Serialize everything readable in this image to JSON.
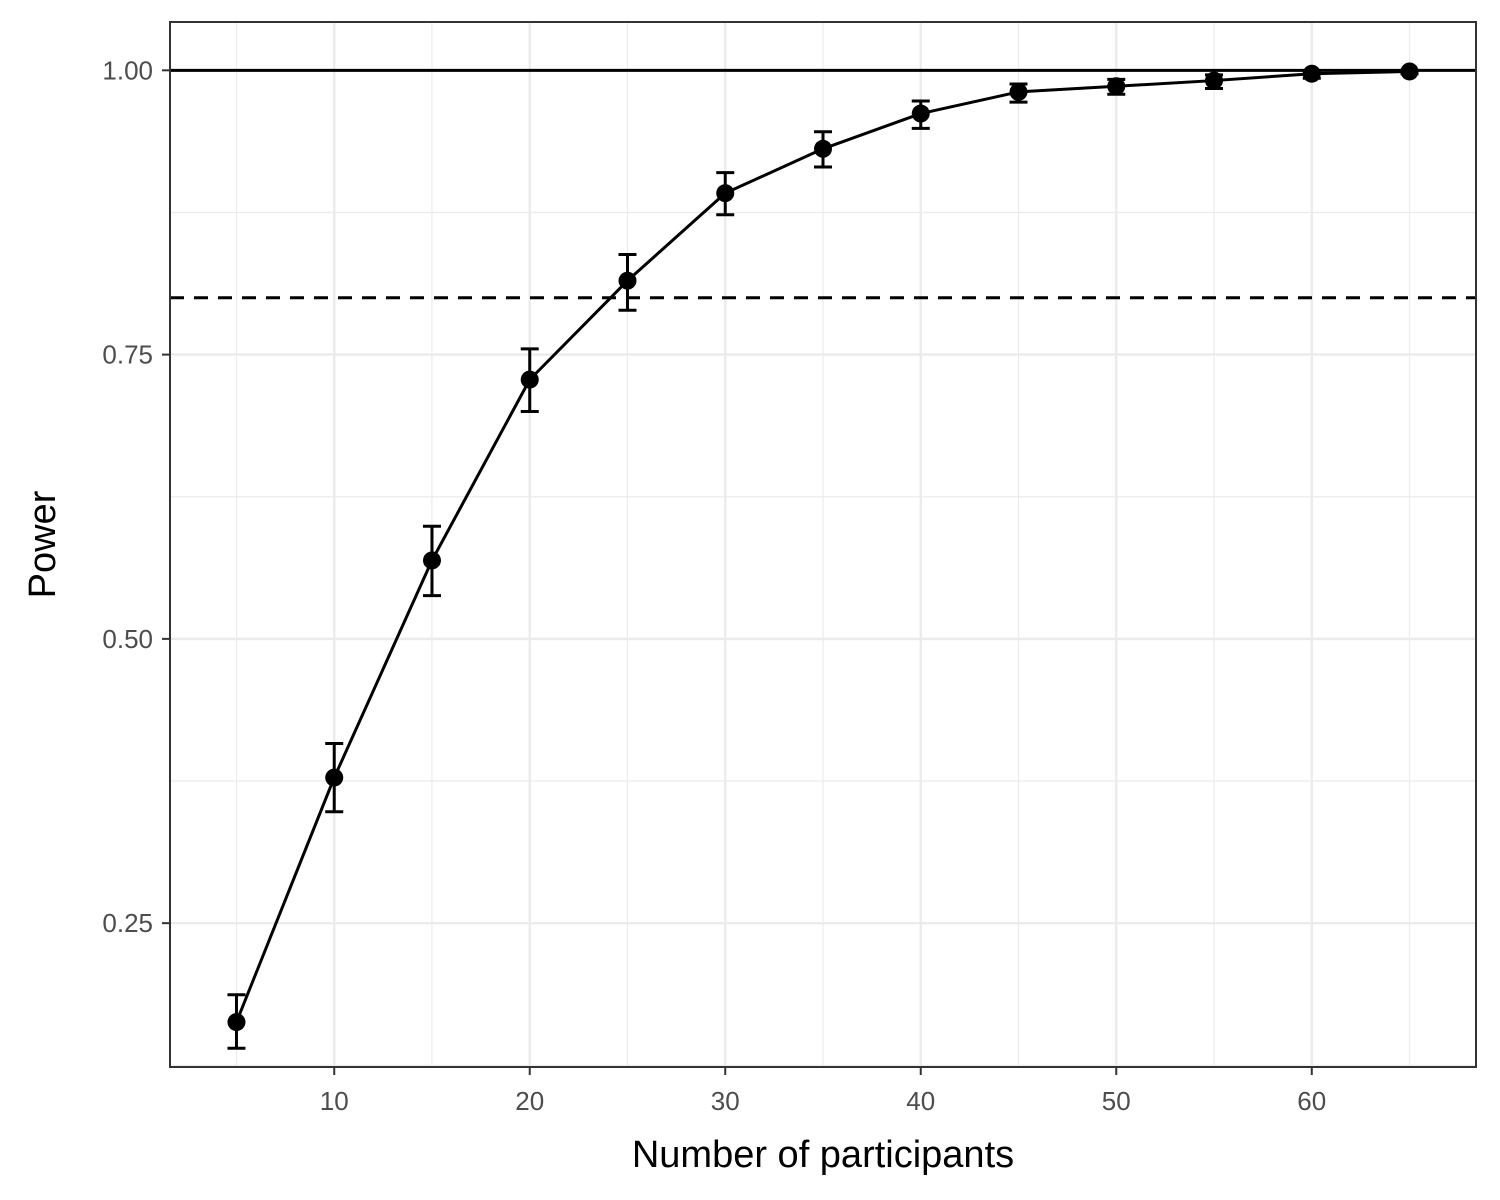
{
  "chart_data": {
    "type": "line",
    "title": "",
    "xlabel": "Number of participants",
    "ylabel": "Power",
    "xlim": [
      1.6,
      68.4
    ],
    "ylim": [
      0.1235,
      1.0425
    ],
    "x_ticks": [
      10,
      20,
      30,
      40,
      50,
      60
    ],
    "x_tick_labels": [
      "10",
      "20",
      "30",
      "40",
      "50",
      "60"
    ],
    "y_ticks": [
      0.25,
      0.5,
      0.75,
      1.0
    ],
    "y_tick_labels": [
      "0.25",
      "0.50",
      "0.75",
      "1.00"
    ],
    "grid": true,
    "legend": "none",
    "reference_lines": [
      {
        "y": 1.0,
        "style": "solid"
      },
      {
        "y": 0.8,
        "style": "dashed"
      }
    ],
    "series": [
      {
        "x": [
          5,
          10,
          15,
          20,
          25,
          30,
          35,
          40,
          45,
          50,
          55,
          60,
          65
        ],
        "y": [
          0.163,
          0.378,
          0.569,
          0.728,
          0.815,
          0.892,
          0.931,
          0.962,
          0.981,
          0.986,
          0.991,
          0.997,
          0.999
        ],
        "ymin": [
          0.14,
          0.348,
          0.538,
          0.7,
          0.789,
          0.873,
          0.915,
          0.949,
          0.972,
          0.979,
          0.984,
          0.993,
          0.997
        ],
        "ymax": [
          0.187,
          0.408,
          0.599,
          0.755,
          0.838,
          0.91,
          0.946,
          0.973,
          0.988,
          0.992,
          0.996,
          0.999,
          1.0
        ]
      }
    ],
    "colors": {
      "line": "#000000",
      "grid": "#ebebeb",
      "panel_border": "#333333",
      "tick_text": "#4d4d4d"
    }
  }
}
